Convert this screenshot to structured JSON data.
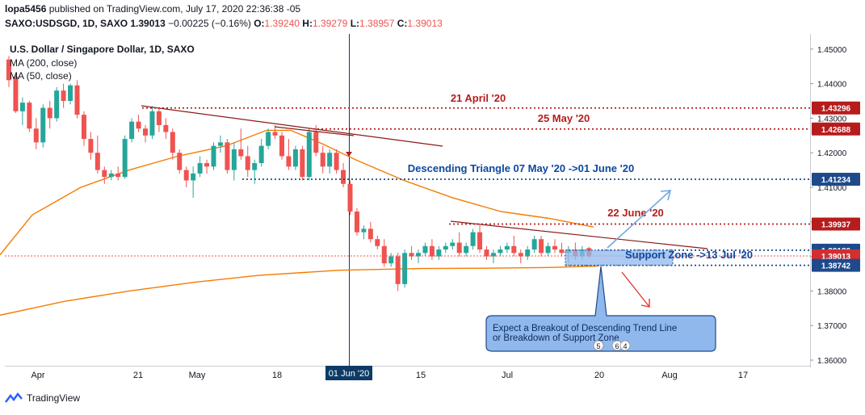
{
  "header": {
    "publisher": "lopa5456",
    "published_text": "published on TradingView.com, July 17, 2020 22:36:38 -05",
    "symbol": "SAXO:USDSGD, 1D, SAXO",
    "last": "1.39013",
    "change": "−0.00225 (−0.16%)",
    "o_label": "O:",
    "o": "1.39240",
    "h_label": "H:",
    "h": "1.39279",
    "l_label": "L:",
    "l": "1.38957",
    "c_label": "C:",
    "c": "1.39013"
  },
  "legend": {
    "title": "U.S. Dollar / Singapore Dollar, 1D, SAXO",
    "ma200": "MA (200, close)",
    "ma50": "MA (50, close)"
  },
  "footer": {
    "brand": "TradingView"
  },
  "colors": {
    "up": "#26a69a",
    "down": "#ef5350",
    "ma": "#f57c00",
    "annot_red": "#b71c1c",
    "annot_blue": "#0d47a1",
    "price_tag": "#b71c1c",
    "blue_tag": "#1e4a8c",
    "vline": "#0d3b66",
    "note_fill": "#90b8ec"
  },
  "chart_data": {
    "type": "candlestick",
    "y_range": [
      1.356,
      1.455
    ],
    "price_axis_ticks": [
      "1.45000",
      "1.44000",
      "1.43000",
      "1.42000",
      "1.41000",
      "1.40000",
      "1.39000",
      "1.38000",
      "1.37000",
      "1.36000"
    ],
    "time_axis_labels": [
      "Apr",
      "21",
      "May",
      "18",
      "01 Jun '20",
      "15",
      "Jul",
      "20",
      "Aug",
      "17"
    ],
    "candles": [
      [
        1.447,
        1.448,
        1.439,
        1.441
      ],
      [
        1.442,
        1.443,
        1.4315,
        1.432
      ],
      [
        1.432,
        1.436,
        1.428,
        1.4345
      ],
      [
        1.4345,
        1.435,
        1.426,
        1.427
      ],
      [
        1.427,
        1.43,
        1.421,
        1.423
      ],
      [
        1.423,
        1.434,
        1.4215,
        1.433
      ],
      [
        1.433,
        1.435,
        1.427,
        1.43
      ],
      [
        1.43,
        1.439,
        1.429,
        1.438
      ],
      [
        1.438,
        1.44,
        1.433,
        1.435
      ],
      [
        1.435,
        1.44,
        1.434,
        1.4395
      ],
      [
        1.4395,
        1.441,
        1.43,
        1.431
      ],
      [
        1.431,
        1.432,
        1.422,
        1.424
      ],
      [
        1.424,
        1.426,
        1.418,
        1.42
      ],
      [
        1.42,
        1.425,
        1.414,
        1.415
      ],
      [
        1.415,
        1.416,
        1.411,
        1.413
      ],
      [
        1.413,
        1.415,
        1.412,
        1.414
      ],
      [
        1.414,
        1.416,
        1.412,
        1.413
      ],
      [
        1.413,
        1.425,
        1.4125,
        1.424
      ],
      [
        1.424,
        1.43,
        1.423,
        1.429
      ],
      [
        1.429,
        1.431,
        1.426,
        1.427
      ],
      [
        1.427,
        1.428,
        1.423,
        1.425
      ],
      [
        1.425,
        1.4335,
        1.424,
        1.432
      ],
      [
        1.432,
        1.433,
        1.426,
        1.428
      ],
      [
        1.428,
        1.43,
        1.424,
        1.426
      ],
      [
        1.426,
        1.427,
        1.418,
        1.42
      ],
      [
        1.42,
        1.421,
        1.414,
        1.415
      ],
      [
        1.415,
        1.416,
        1.41,
        1.412
      ],
      [
        1.412,
        1.416,
        1.407,
        1.414
      ],
      [
        1.414,
        1.419,
        1.413,
        1.417
      ],
      [
        1.417,
        1.418,
        1.414,
        1.416
      ],
      [
        1.416,
        1.423,
        1.415,
        1.422
      ],
      [
        1.422,
        1.425,
        1.42,
        1.423
      ],
      [
        1.423,
        1.424,
        1.414,
        1.415
      ],
      [
        1.415,
        1.423,
        1.412,
        1.421
      ],
      [
        1.421,
        1.427,
        1.418,
        1.419
      ],
      [
        1.419,
        1.422,
        1.413,
        1.415
      ],
      [
        1.415,
        1.418,
        1.411,
        1.417
      ],
      [
        1.417,
        1.424,
        1.416,
        1.422
      ],
      [
        1.422,
        1.427,
        1.421,
        1.426
      ],
      [
        1.426,
        1.428,
        1.424,
        1.425
      ],
      [
        1.425,
        1.426,
        1.418,
        1.419
      ],
      [
        1.419,
        1.424,
        1.415,
        1.416
      ],
      [
        1.416,
        1.422,
        1.415,
        1.421
      ],
      [
        1.421,
        1.422,
        1.412,
        1.413
      ],
      [
        1.413,
        1.427,
        1.412,
        1.426
      ],
      [
        1.426,
        1.428,
        1.419,
        1.42
      ],
      [
        1.42,
        1.422,
        1.414,
        1.416
      ],
      [
        1.416,
        1.421,
        1.414,
        1.42
      ],
      [
        1.42,
        1.421,
        1.414,
        1.415
      ],
      [
        1.415,
        1.417,
        1.41,
        1.411
      ],
      [
        1.411,
        1.412,
        1.402,
        1.403
      ],
      [
        1.403,
        1.404,
        1.396,
        1.397
      ],
      [
        1.397,
        1.399,
        1.395,
        1.398
      ],
      [
        1.398,
        1.4,
        1.394,
        1.395
      ],
      [
        1.395,
        1.396,
        1.392,
        1.393
      ],
      [
        1.393,
        1.395,
        1.387,
        1.388
      ],
      [
        1.388,
        1.391,
        1.387,
        1.39
      ],
      [
        1.39,
        1.391,
        1.38,
        1.382
      ],
      [
        1.382,
        1.392,
        1.381,
        1.391
      ],
      [
        1.391,
        1.393,
        1.389,
        1.39
      ],
      [
        1.39,
        1.392,
        1.388,
        1.391
      ],
      [
        1.391,
        1.394,
        1.39,
        1.393
      ],
      [
        1.393,
        1.395,
        1.389,
        1.39
      ],
      [
        1.39,
        1.393,
        1.389,
        1.392
      ],
      [
        1.392,
        1.394,
        1.391,
        1.393
      ],
      [
        1.393,
        1.395,
        1.392,
        1.394
      ],
      [
        1.394,
        1.397,
        1.39,
        1.391
      ],
      [
        1.391,
        1.394,
        1.39,
        1.393
      ],
      [
        1.393,
        1.398,
        1.392,
        1.397
      ],
      [
        1.397,
        1.399,
        1.391,
        1.392
      ],
      [
        1.392,
        1.393,
        1.389,
        1.39
      ],
      [
        1.39,
        1.392,
        1.388,
        1.391
      ],
      [
        1.391,
        1.393,
        1.39,
        1.392
      ],
      [
        1.392,
        1.394,
        1.391,
        1.393
      ],
      [
        1.393,
        1.396,
        1.39,
        1.391
      ],
      [
        1.391,
        1.392,
        1.388,
        1.39
      ],
      [
        1.39,
        1.393,
        1.389,
        1.392
      ],
      [
        1.392,
        1.396,
        1.391,
        1.395
      ],
      [
        1.395,
        1.396,
        1.39,
        1.391
      ],
      [
        1.391,
        1.394,
        1.39,
        1.393
      ],
      [
        1.393,
        1.395,
        1.391,
        1.392
      ],
      [
        1.392,
        1.394,
        1.39,
        1.391
      ],
      [
        1.391,
        1.393,
        1.388,
        1.392
      ],
      [
        1.392,
        1.394,
        1.389,
        1.39
      ],
      [
        1.39,
        1.393,
        1.389,
        1.392
      ],
      [
        1.3924,
        1.3928,
        1.3896,
        1.3901
      ]
    ],
    "ma50": [
      [
        0,
        1.3905
      ],
      [
        40,
        1.402
      ],
      [
        100,
        1.41
      ],
      [
        160,
        1.415
      ],
      [
        220,
        1.419
      ],
      [
        280,
        1.422
      ],
      [
        330,
        1.4265
      ],
      [
        360,
        1.4265
      ],
      [
        400,
        1.4225
      ],
      [
        440,
        1.418
      ],
      [
        500,
        1.412
      ],
      [
        560,
        1.407
      ],
      [
        620,
        1.403
      ],
      [
        680,
        1.401
      ],
      [
        735,
        1.3985
      ]
    ],
    "ma200": [
      [
        0,
        1.373
      ],
      [
        80,
        1.377
      ],
      [
        160,
        1.38
      ],
      [
        240,
        1.3825
      ],
      [
        320,
        1.3845
      ],
      [
        420,
        1.386
      ],
      [
        520,
        1.3865
      ],
      [
        600,
        1.3866
      ],
      [
        680,
        1.3868
      ],
      [
        740,
        1.3872
      ]
    ],
    "horizontal_levels": [
      {
        "price": 1.43296,
        "label": "1.43296",
        "color": "#b71c1c"
      },
      {
        "price": 1.42688,
        "label": "1.42688",
        "color": "#b71c1c"
      },
      {
        "price": 1.41234,
        "label": "1.41234",
        "color": "#1e4a8c"
      },
      {
        "price": 1.39937,
        "label": "1.39937",
        "color": "#b71c1c"
      },
      {
        "price": 1.3918,
        "label": "1.39180",
        "color": "#1e4a8c"
      },
      {
        "price": 1.39013,
        "label": "1.39013",
        "color": "#d32f2f"
      },
      {
        "price": 1.38742,
        "label": "1.38742",
        "color": "#1e4a8c"
      }
    ],
    "annotations": [
      {
        "text": "21 April '20",
        "color": "#b71c1c"
      },
      {
        "text": "25 May '20",
        "color": "#b71c1c"
      },
      {
        "text": "Descending Triangle 07 May '20 ->01 June '20",
        "color": "#0d47a1"
      },
      {
        "text": "22 June '20",
        "color": "#b71c1c"
      },
      {
        "text": "Support Zone ->13 Jul '20",
        "color": "#0d47a1"
      }
    ],
    "note_lines": [
      "Expect a Breakout of Descending Trend Line",
      "or Breakdown of Support Zone"
    ],
    "event_badges": [
      "5",
      "6",
      "4"
    ]
  }
}
